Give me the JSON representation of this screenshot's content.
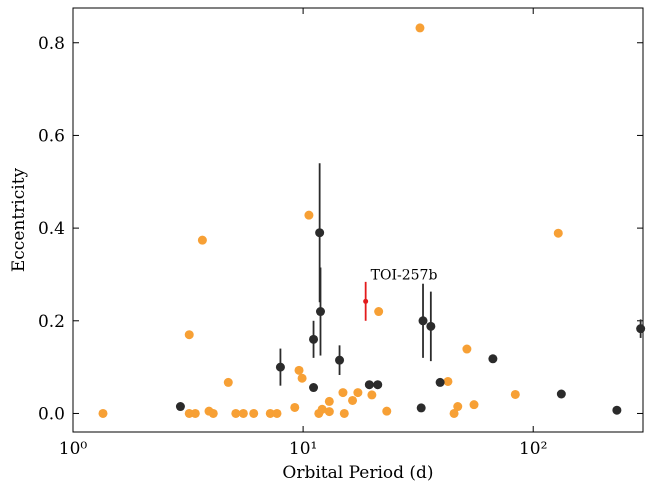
{
  "chart_data": {
    "type": "scatter",
    "xlabel": "Orbital Period (d)",
    "ylabel": "Eccentricity",
    "xscale": "log",
    "xlim": [
      1,
      300
    ],
    "ylim": [
      -0.04,
      0.875
    ],
    "xticks": [
      {
        "value": 1,
        "label": "10⁰"
      },
      {
        "value": 10,
        "label": "10¹"
      },
      {
        "value": 100,
        "label": "10²"
      }
    ],
    "yticks": [
      {
        "value": 0,
        "label": "0.0"
      },
      0.2,
      0.4,
      0.6,
      0.8
    ],
    "series": [
      {
        "color": "#f7a035",
        "x": [
          1.35,
          3.2,
          3.65,
          3.2,
          3.4,
          3.9,
          4.07,
          4.73,
          5.1,
          5.5,
          6.1,
          7.2,
          7.7,
          9.2,
          9.6,
          9.9,
          10.6,
          11.7,
          12.1,
          13.0,
          13.0,
          14.9,
          15.1,
          16.4,
          17.3,
          19.9,
          21.3,
          23.1,
          32.2,
          42.6,
          45.3,
          47.0,
          51.5,
          55.3,
          83.6,
          128.5
        ],
        "values": [
          0,
          0.17,
          0.374,
          0,
          0,
          0.005,
          0,
          0.067,
          0,
          0,
          0,
          0,
          0,
          0.013,
          0.093,
          0.076,
          0.428,
          0,
          0.009,
          0.004,
          0.026,
          0.045,
          0,
          0.028,
          0.045,
          0.04,
          0.22,
          0.005,
          0.832,
          0.069,
          0,
          0.015,
          0.139,
          0.019,
          0.041,
          0.389
        ]
      },
      {
        "color": "#2b2b2b",
        "x": [
          2.93,
          7.97,
          11.1,
          11.1,
          11.8,
          11.9,
          14.4,
          19.4,
          21.1,
          32.6,
          33.2,
          35.9,
          39.4,
          66.8,
          132.5,
          231,
          293
        ],
        "values": [
          0.015,
          0.1,
          0.056,
          0.16,
          0.39,
          0.22,
          0.115,
          0.062,
          0.062,
          0.012,
          0.2,
          0.188,
          0.067,
          0.118,
          0.042,
          0.007,
          0.183
        ],
        "errors": [
          0,
          0.04,
          0,
          0.04,
          0.15,
          0.095,
          0.032,
          0,
          0,
          0,
          0.08,
          0.075,
          0,
          0,
          0,
          0,
          0.02
        ]
      },
      {
        "color": "#e31a1c",
        "x": [
          18.7
        ],
        "values": [
          0.242
        ],
        "errors": [
          0.042
        ]
      }
    ],
    "annotations": [
      {
        "text": "TOI-257b",
        "x": 18.7,
        "y": 0.3
      }
    ]
  }
}
